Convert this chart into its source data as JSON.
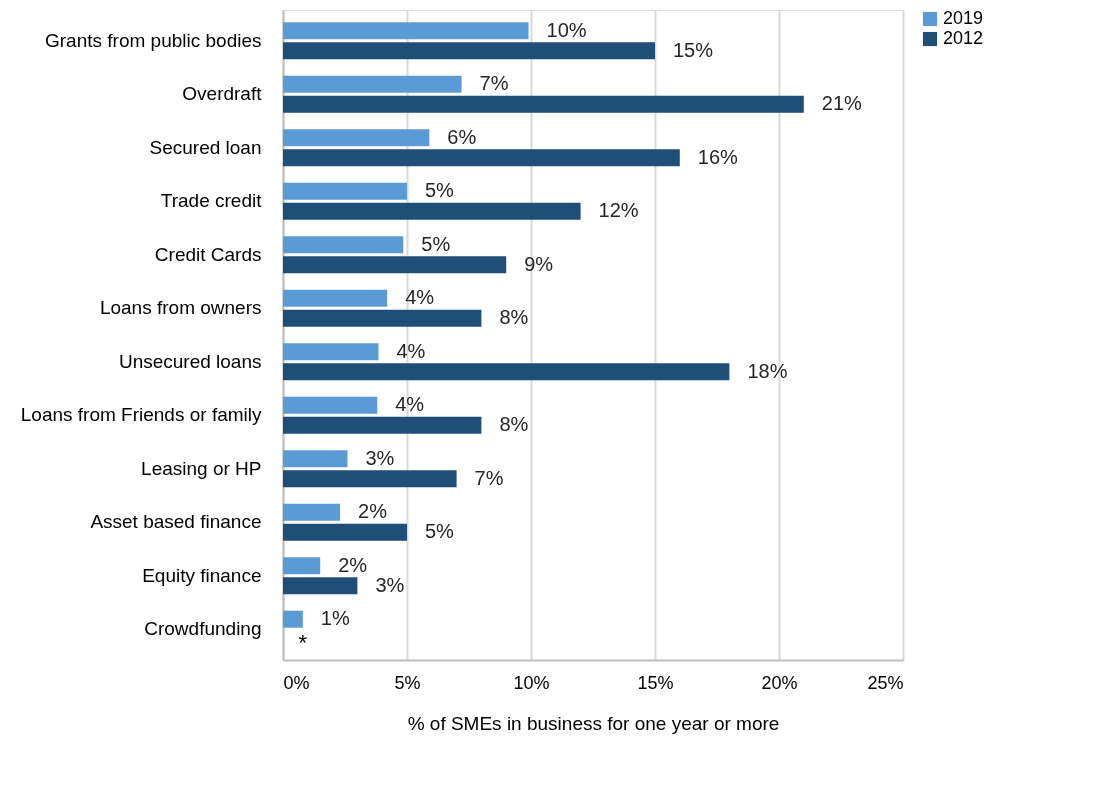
{
  "chart_data": {
    "type": "bar",
    "orientation": "horizontal",
    "categories": [
      "Grants from public bodies",
      "Overdraft",
      "Secured loan",
      "Trade credit",
      "Credit Cards",
      "Loans from owners",
      "Unsecured loans",
      "Loans from Friends or family",
      "Leasing or HP",
      "Asset based finance",
      "Equity finance",
      "Crowdfunding"
    ],
    "series": [
      {
        "name": "2019",
        "color": "#5b9bd5",
        "values": [
          9.9,
          7.2,
          5.9,
          5.0,
          4.85,
          4.2,
          3.85,
          3.8,
          2.6,
          2.3,
          1.5,
          0.8
        ],
        "value_labels": [
          "10%",
          "7%",
          "6%",
          "5%",
          "5%",
          "4%",
          "4%",
          "4%",
          "3%",
          "2%",
          "2%",
          "1%"
        ]
      },
      {
        "name": "2012",
        "color": "#1f4e79",
        "values": [
          15,
          21,
          16,
          12,
          9,
          8,
          18,
          8,
          7,
          5,
          3,
          null
        ],
        "value_labels": [
          "15%",
          "21%",
          "16%",
          "12%",
          "9%",
          "8%",
          "18%",
          "8%",
          "7%",
          "5%",
          "3%",
          null
        ]
      }
    ],
    "xlim": [
      0,
      25
    ],
    "xticks": [
      {
        "value": 0,
        "label": "0%"
      },
      {
        "value": 5,
        "label": "5%"
      },
      {
        "value": 10,
        "label": "10%"
      },
      {
        "value": 15,
        "label": "15%"
      },
      {
        "value": 20,
        "label": "20%"
      },
      {
        "value": 25,
        "label": "25%"
      }
    ],
    "xlabel": "% of SMEs in business for one year or more",
    "grid": "x",
    "legend": "right",
    "annotations": [
      {
        "text": "*",
        "x": 0.8,
        "y": "Crowdfunding"
      }
    ]
  }
}
